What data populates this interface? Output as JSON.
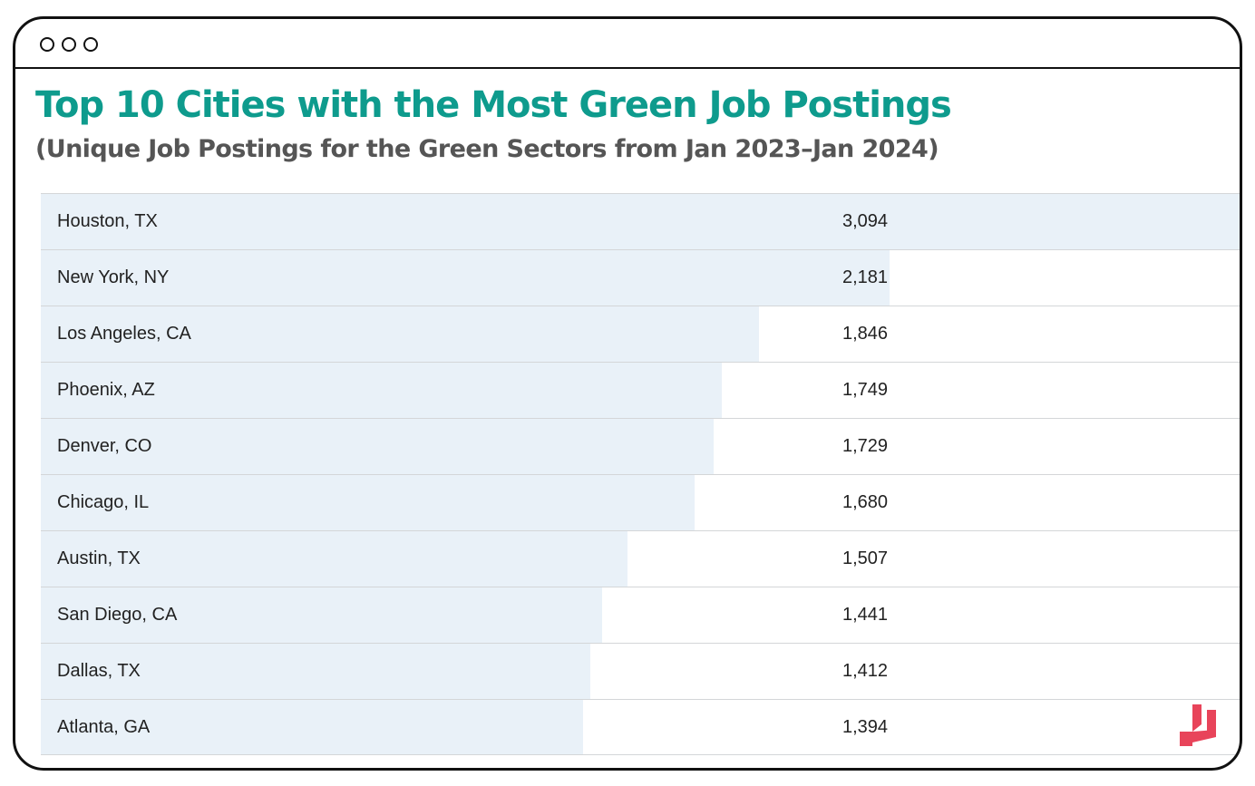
{
  "colors": {
    "title": "#0e9b8d",
    "subtitle": "#555555",
    "bar": "#e9f1f8",
    "logo": "#e8445a"
  },
  "window": {
    "controls": [
      "circle-icon",
      "circle-icon",
      "circle-icon"
    ]
  },
  "chart_data": {
    "type": "bar",
    "orientation": "horizontal",
    "title": "Top 10 Cities with the Most Green Job Postings",
    "subtitle": "(Unique Job Postings for the Green Sectors from Jan 2023–Jan 2024)",
    "categories": [
      "Houston, TX",
      "New York, NY",
      "Los Angeles, CA",
      "Phoenix, AZ",
      "Denver, CO",
      "Chicago, IL",
      "Austin, TX",
      "San Diego, CA",
      "Dallas, TX",
      "Atlanta, GA"
    ],
    "value_labels": [
      "3,094",
      "2,181",
      "1,846",
      "1,749",
      "1,729",
      "1,680",
      "1,507",
      "1,441",
      "1,412",
      "1,394"
    ],
    "values": [
      3094,
      2181,
      1846,
      1749,
      1729,
      1680,
      1507,
      1441,
      1412,
      1394
    ],
    "xlim": [
      0,
      3094
    ],
    "grid": false,
    "legend": "none"
  },
  "logo": {
    "icon": "brand-logo-icon"
  }
}
